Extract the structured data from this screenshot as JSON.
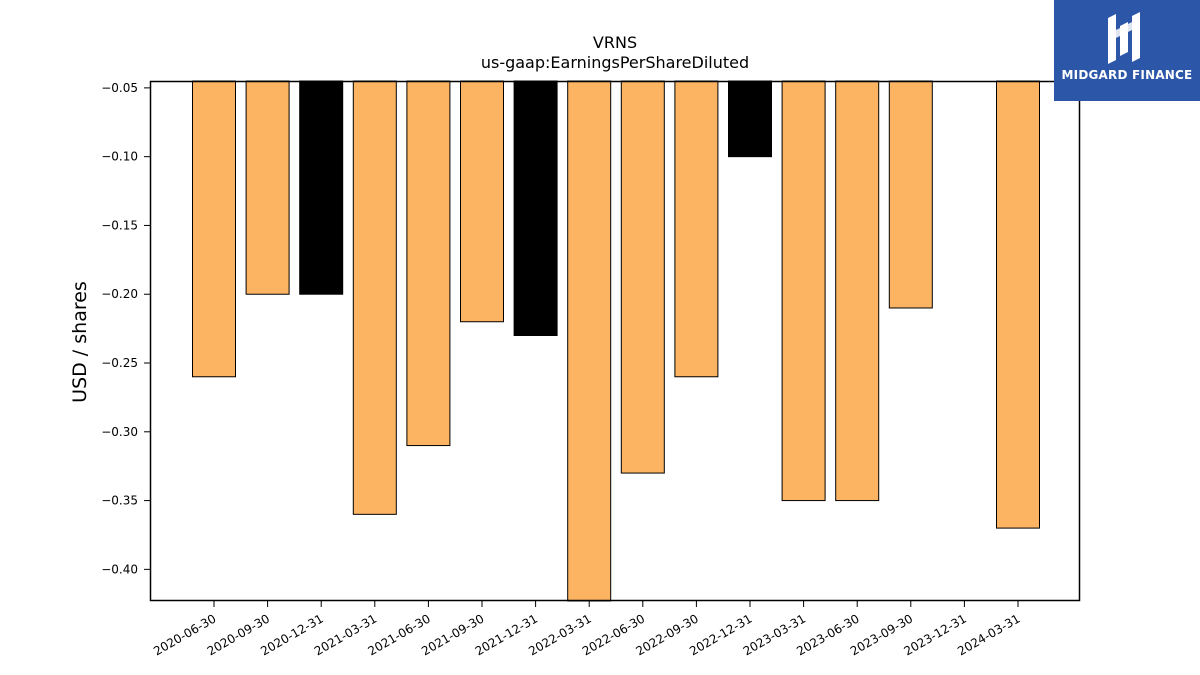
{
  "chart_data": {
    "type": "bar",
    "title": "VRNS",
    "subtitle": "us-gaap:EarningsPerShareDiluted",
    "xlabel": "",
    "ylabel": "USD / shares",
    "categories": [
      "2020-06-30",
      "2020-09-30",
      "2020-12-31",
      "2021-03-31",
      "2021-06-30",
      "2021-09-30",
      "2021-12-31",
      "2022-03-31",
      "2022-06-30",
      "2022-09-30",
      "2022-12-31",
      "2023-03-31",
      "2023-06-30",
      "2023-09-30",
      "2023-12-31",
      "2024-03-31"
    ],
    "values": [
      -0.26,
      -0.2,
      -0.2,
      -0.36,
      -0.31,
      -0.22,
      -0.23,
      -0.43,
      -0.33,
      -0.26,
      -0.1,
      -0.35,
      -0.35,
      -0.21,
      null,
      -0.37
    ],
    "highlight": [
      false,
      false,
      true,
      false,
      false,
      false,
      true,
      false,
      false,
      false,
      true,
      false,
      false,
      false,
      false,
      false
    ],
    "ylim": [
      -0.423,
      -0.045
    ],
    "yticks": [
      -0.05,
      -0.1,
      -0.15,
      -0.2,
      -0.25,
      -0.3,
      -0.35,
      -0.4
    ],
    "ytick_labels": [
      "−0.05",
      "−0.10",
      "−0.15",
      "−0.20",
      "−0.25",
      "−0.30",
      "−0.35",
      "−0.40"
    ],
    "grid": false,
    "colors": {
      "bar": "#fdb462",
      "highlight": "#000000",
      "edge": "#000000"
    }
  },
  "logo": {
    "text": "MIDGARD FINANCE",
    "icon": "midgard-logo-icon"
  }
}
